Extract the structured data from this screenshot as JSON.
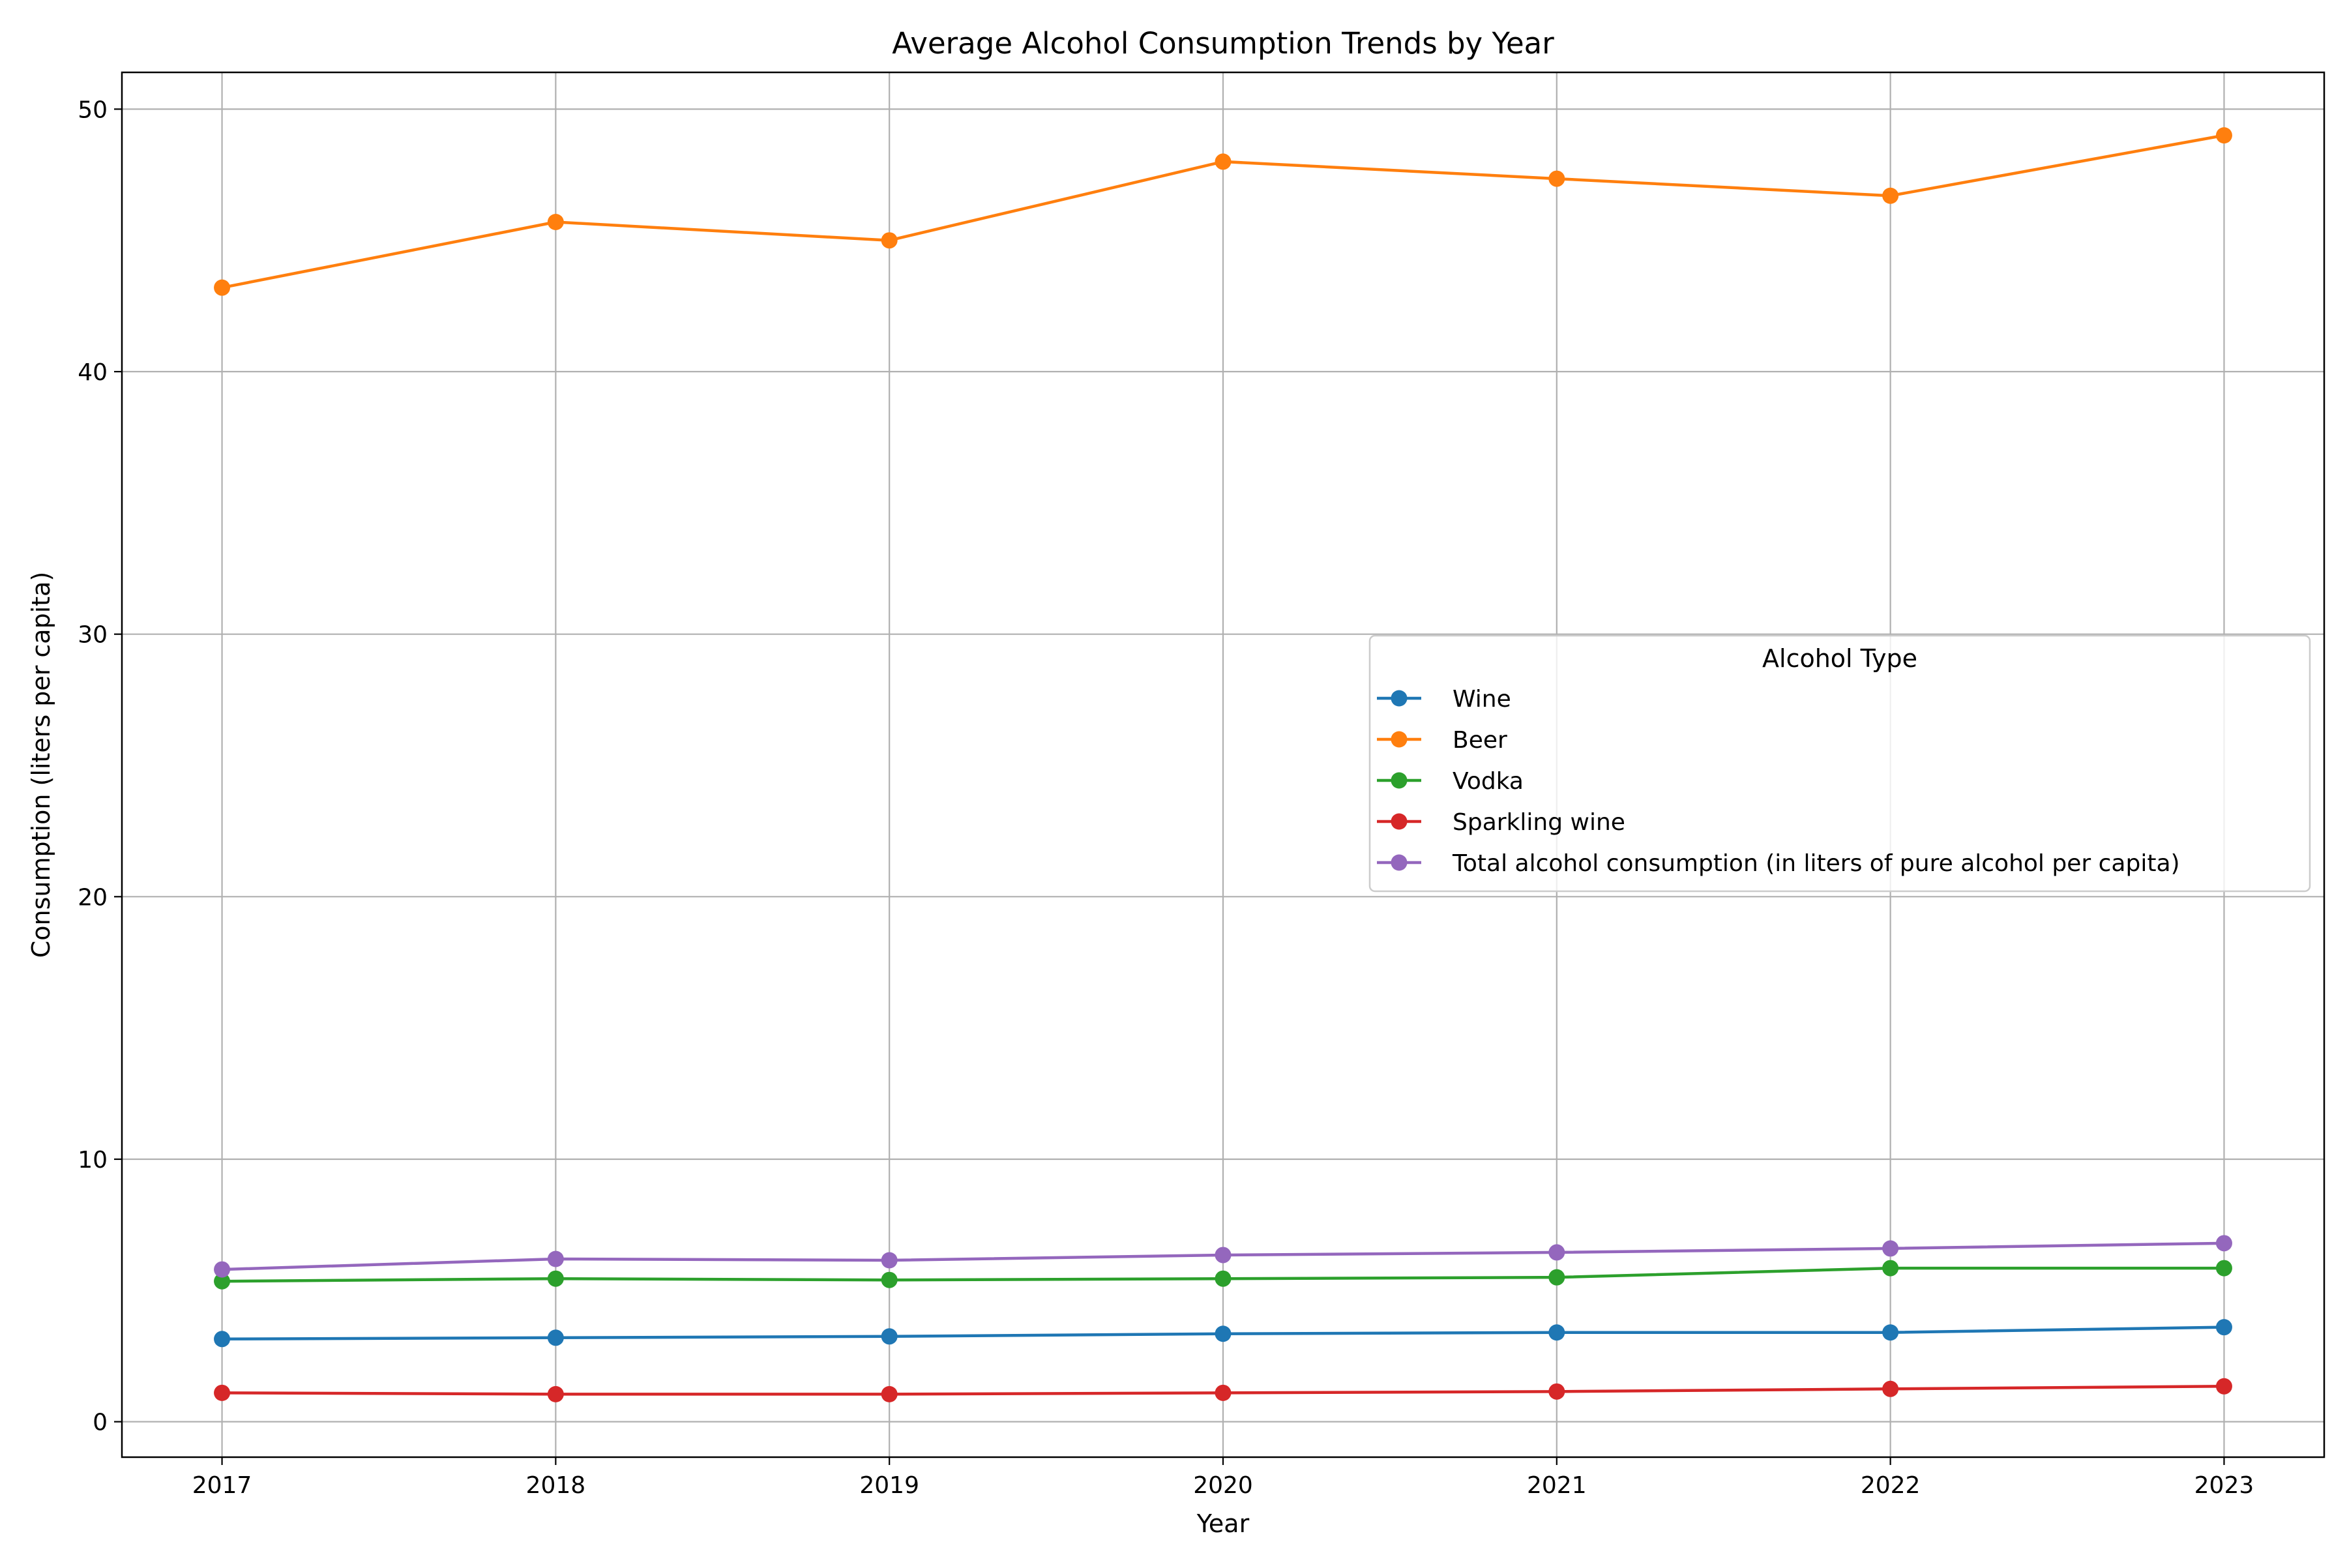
{
  "chart_data": {
    "type": "line",
    "title": "Average Alcohol Consumption Trends by Year",
    "xlabel": "Year",
    "ylabel": "Consumption (liters per capita)",
    "x": [
      2017,
      2018,
      2019,
      2020,
      2021,
      2022,
      2023
    ],
    "x_ticks": [
      "2017",
      "2018",
      "2019",
      "2020",
      "2021",
      "2022",
      "2023"
    ],
    "y_ticks": [
      0,
      10,
      20,
      30,
      40,
      50
    ],
    "xlim": [
      2016.7,
      2023.3
    ],
    "ylim": [
      -1.35,
      51.4
    ],
    "grid": true,
    "markers": "circle",
    "legend": {
      "title": "Alcohol Type",
      "placement": "center-right"
    },
    "series": [
      {
        "name": "Wine",
        "color": "#1f77b4",
        "values": [
          3.15,
          3.2,
          3.25,
          3.35,
          3.4,
          3.4,
          3.6
        ]
      },
      {
        "name": "Beer",
        "color": "#ff7f0e",
        "values": [
          43.2,
          45.7,
          45.0,
          48.0,
          47.35,
          46.7,
          49.0
        ]
      },
      {
        "name": "Vodka",
        "color": "#2ca02c",
        "values": [
          5.35,
          5.45,
          5.4,
          5.45,
          5.5,
          5.85,
          5.85
        ]
      },
      {
        "name": "Sparkling wine",
        "color": "#d62728",
        "values": [
          1.1,
          1.05,
          1.05,
          1.1,
          1.15,
          1.25,
          1.35
        ]
      },
      {
        "name": "Total alcohol consumption (in liters of pure alcohol per capita)",
        "color": "#9467bd",
        "values": [
          5.8,
          6.2,
          6.15,
          6.35,
          6.45,
          6.6,
          6.8
        ]
      }
    ]
  }
}
